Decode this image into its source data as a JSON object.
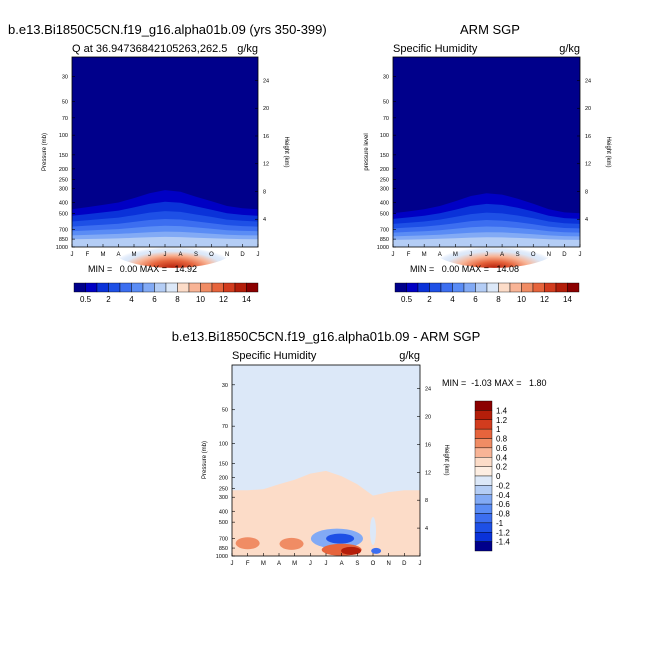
{
  "panels": [
    {
      "title": "b.e13.Bi1850C5CN.f19_g16.alpha01b.09 (yrs 350-399)",
      "subtitle": "Q at 36.94736842105263,262.5",
      "units": "g/kg",
      "ylabel_left": "Pressure (mb)",
      "ylabel_right": "Height (km)",
      "stats": "MIN =   0.00 MAX =   14.92"
    },
    {
      "title": "ARM SGP",
      "subtitle": "Specific Humidity",
      "units": "g/kg",
      "ylabel_left": "pressure level",
      "ylabel_right": "Height (km)",
      "stats": "MIN =   0.00 MAX =   14.08"
    },
    {
      "title": "b.e13.Bi1850C5CN.f19_g16.alpha01b.09 - ARM SGP",
      "subtitle": "Specific Humidity",
      "units": "g/kg",
      "ylabel_left": "Pressure (mb)",
      "ylabel_right": "Height (km)",
      "stats": "MIN =  -1.03 MAX =   1.80"
    }
  ],
  "chart_data": [
    {
      "type": "heatmap",
      "title": "Q at 36.94736842105263,262.5",
      "x_categories": [
        "J",
        "F",
        "M",
        "A",
        "M",
        "J",
        "J",
        "A",
        "S",
        "O",
        "N",
        "D",
        "J"
      ],
      "y_pressure_ticks": [
        30,
        50,
        70,
        100,
        150,
        200,
        250,
        300,
        400,
        500,
        700,
        850,
        1000
      ],
      "y_height_ticks": [
        4,
        8,
        12,
        16,
        20,
        24
      ],
      "max_value": 14.92,
      "max_month_index": 6.5,
      "moist_top_pressure": [
        460,
        440,
        420,
        400,
        365,
        330,
        310,
        320,
        355,
        390,
        430,
        450,
        460
      ],
      "colorbar": {
        "levels": [
          0.5,
          1,
          2,
          3,
          4,
          5,
          6,
          7,
          8,
          9,
          10,
          11,
          12,
          13,
          14
        ],
        "labels": [
          "0.5",
          "2",
          "4",
          "6",
          "8",
          "10",
          "12",
          "14"
        ],
        "colors": [
          "#00008b",
          "#0000c4",
          "#0a32d9",
          "#1e50e6",
          "#3c6ef0",
          "#5a8cf5",
          "#82aaf5",
          "#b4cdf5",
          "#dce8f8",
          "#fcdcc8",
          "#f8b496",
          "#f08c64",
          "#e6643c",
          "#d23c1e",
          "#b41e0a",
          "#8b0000"
        ]
      }
    },
    {
      "type": "heatmap",
      "title": "Specific Humidity",
      "x_categories": [
        "J",
        "F",
        "M",
        "A",
        "M",
        "J",
        "J",
        "A",
        "S",
        "O",
        "N",
        "D",
        "J"
      ],
      "y_pressure_ticks": [
        30,
        50,
        70,
        100,
        150,
        200,
        250,
        300,
        400,
        500,
        700,
        850,
        1000
      ],
      "y_height_ticks": [
        4,
        8,
        12,
        16,
        20,
        24
      ],
      "max_value": 14.08,
      "max_month_index": 6.5,
      "moist_top_pressure": [
        500,
        480,
        460,
        430,
        390,
        350,
        330,
        340,
        370,
        410,
        460,
        490,
        500
      ],
      "colorbar": {
        "levels": [
          0.5,
          1,
          2,
          3,
          4,
          5,
          6,
          7,
          8,
          9,
          10,
          11,
          12,
          13,
          14
        ],
        "labels": [
          "0.5",
          "2",
          "4",
          "6",
          "8",
          "10",
          "12",
          "14"
        ],
        "colors": [
          "#00008b",
          "#0000c4",
          "#0a32d9",
          "#1e50e6",
          "#3c6ef0",
          "#5a8cf5",
          "#82aaf5",
          "#b4cdf5",
          "#dce8f8",
          "#fcdcc8",
          "#f8b496",
          "#f08c64",
          "#e6643c",
          "#d23c1e",
          "#b41e0a",
          "#8b0000"
        ]
      }
    },
    {
      "type": "heatmap",
      "title": "Specific Humidity",
      "x_categories": [
        "J",
        "F",
        "M",
        "A",
        "M",
        "J",
        "J",
        "A",
        "S",
        "O",
        "N",
        "D",
        "J"
      ],
      "y_pressure_ticks": [
        30,
        50,
        70,
        100,
        150,
        200,
        250,
        300,
        400,
        500,
        700,
        850,
        1000
      ],
      "y_height_ticks": [
        4,
        8,
        12,
        16,
        20,
        24
      ],
      "min_value": -1.03,
      "max_value": 1.8,
      "colorbar": {
        "labels": [
          "1.4",
          "1.2",
          "1",
          "0.8",
          "0.6",
          "0.4",
          "0.2",
          "0",
          "-0.2",
          "-0.4",
          "-0.6",
          "-0.8",
          "-1",
          "-1.2",
          "-1.4"
        ],
        "colors": [
          "#8b0000",
          "#b41e0a",
          "#d23c1e",
          "#e6643c",
          "#f08c64",
          "#f8b496",
          "#fcdcc8",
          "#fdeee2",
          "#dce8f8",
          "#b4cdf5",
          "#82aaf5",
          "#5a8cf5",
          "#3c6ef0",
          "#1e50e6",
          "#0a32d9",
          "#00008b"
        ]
      }
    }
  ]
}
